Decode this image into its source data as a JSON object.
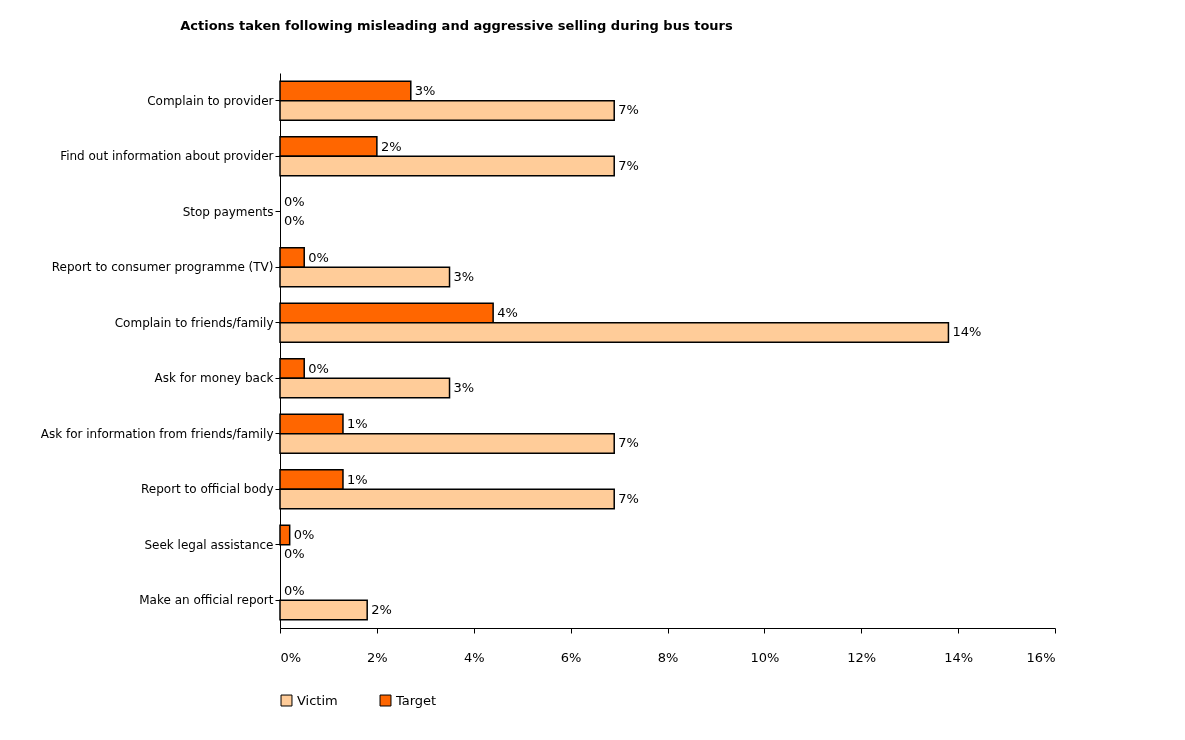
{
  "chart_data": {
    "type": "bar",
    "orientation": "horizontal",
    "title": "Actions taken following misleading and aggressive selling during bus tours",
    "categories": [
      "Complain to provider",
      "Find out information about provider",
      "Stop payments",
      "Report to consumer programme (TV)",
      "Complain to friends/family",
      "Ask for money back",
      "Ask for information from friends/family",
      "Report to official body",
      "Seek legal assistance",
      "Make an official report"
    ],
    "series": [
      {
        "name": "Target",
        "color": "#ff6600",
        "values": [
          2.7,
          2.0,
          0,
          0.5,
          4.4,
          0.5,
          1.3,
          1.3,
          0.2,
          0
        ],
        "value_labels": [
          "3%",
          "2%",
          "0%",
          "0%",
          "4%",
          "0%",
          "1%",
          "1%",
          "0%",
          "0%"
        ]
      },
      {
        "name": "Victim",
        "color": "#ffcc99",
        "values": [
          6.9,
          6.9,
          0,
          3.5,
          13.8,
          3.5,
          6.9,
          6.9,
          0,
          1.8
        ],
        "value_labels": [
          "7%",
          "7%",
          "0%",
          "3%",
          "14%",
          "3%",
          "7%",
          "7%",
          "0%",
          "2%"
        ]
      }
    ],
    "xlim": [
      0,
      16
    ],
    "xticks": [
      {
        "value": 0,
        "label": "0%"
      },
      {
        "value": 2,
        "label": "2%"
      },
      {
        "value": 4,
        "label": "4%"
      },
      {
        "value": 6,
        "label": "6%"
      },
      {
        "value": 8,
        "label": "8%"
      },
      {
        "value": 10,
        "label": "10%"
      },
      {
        "value": 12,
        "label": "12%"
      },
      {
        "value": 14,
        "label": "14%"
      },
      {
        "value": 16,
        "label": "16%"
      }
    ],
    "grid": false,
    "legend": "bottom"
  }
}
